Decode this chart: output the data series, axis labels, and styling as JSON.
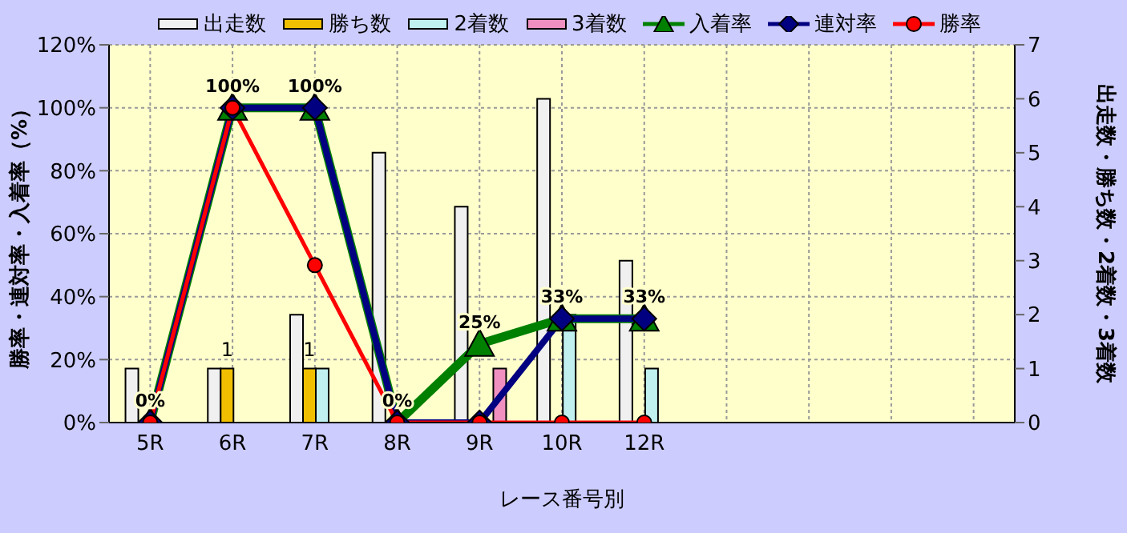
{
  "chart_data": {
    "type": "bar",
    "xlabel": "レース番号別",
    "ylabel": "勝率・連対率・入着率（%）",
    "y2label": "出走数・勝ち数・2着数・3着数",
    "categories": [
      "5R",
      "6R",
      "7R",
      "8R",
      "9R",
      "10R",
      "12R",
      null,
      null,
      null,
      null
    ],
    "series": [
      {
        "name": "出走数",
        "axis": "y2",
        "color": "#f0f0f0",
        "values": [
          1,
          1,
          2,
          5,
          4,
          6,
          3,
          null,
          null,
          null,
          null
        ]
      },
      {
        "name": "勝ち数",
        "axis": "y2",
        "color": "#f0c000",
        "values": [
          0,
          1,
          1,
          0,
          0,
          0,
          0,
          null,
          null,
          null,
          null
        ],
        "value_labels": [
          null,
          "1",
          "1",
          null,
          null,
          null,
          null,
          null,
          null,
          null,
          null
        ]
      },
      {
        "name": "2着数",
        "axis": "y2",
        "color": "#c0f0f0",
        "values": [
          0,
          0,
          1,
          0,
          0,
          2,
          1,
          null,
          null,
          null,
          null
        ]
      },
      {
        "name": "3着数",
        "axis": "y2",
        "color": "#f090c0",
        "values": [
          0,
          0,
          0,
          0,
          1,
          0,
          0,
          null,
          null,
          null,
          null
        ]
      },
      {
        "name": "入着率",
        "type": "line",
        "color": "#008000",
        "marker": "triangle",
        "values": [
          0,
          100,
          100,
          0,
          25,
          33,
          33,
          null,
          null,
          null,
          null
        ],
        "value_labels": [
          "0%",
          "100%",
          "100%",
          "0%",
          "25%",
          "33%",
          "33%",
          null,
          null,
          null,
          null
        ]
      },
      {
        "name": "連対率",
        "type": "line",
        "color": "#000080",
        "marker": "diamond",
        "values": [
          0,
          100,
          100,
          0,
          0,
          33,
          33,
          null,
          null,
          null,
          null
        ]
      },
      {
        "name": "勝率",
        "type": "line",
        "color": "#ff0000",
        "marker": "circle",
        "values": [
          0,
          100,
          50,
          0,
          0,
          0,
          0,
          null,
          null,
          null,
          null
        ]
      }
    ],
    "ylim": [
      0,
      120
    ],
    "yticks": [
      {
        "value": 0,
        "label": "0%"
      },
      {
        "value": 20,
        "label": "20%"
      },
      {
        "value": 40,
        "label": "40%"
      },
      {
        "value": 60,
        "label": "60%"
      },
      {
        "value": 80,
        "label": "80%"
      },
      {
        "value": 100,
        "label": "100%"
      },
      {
        "value": 120,
        "label": "120%"
      }
    ],
    "y2lim": [
      0,
      7
    ],
    "y2ticks": [
      0,
      1,
      2,
      3,
      4,
      5,
      6,
      7
    ],
    "grid": true,
    "legend": "top"
  }
}
